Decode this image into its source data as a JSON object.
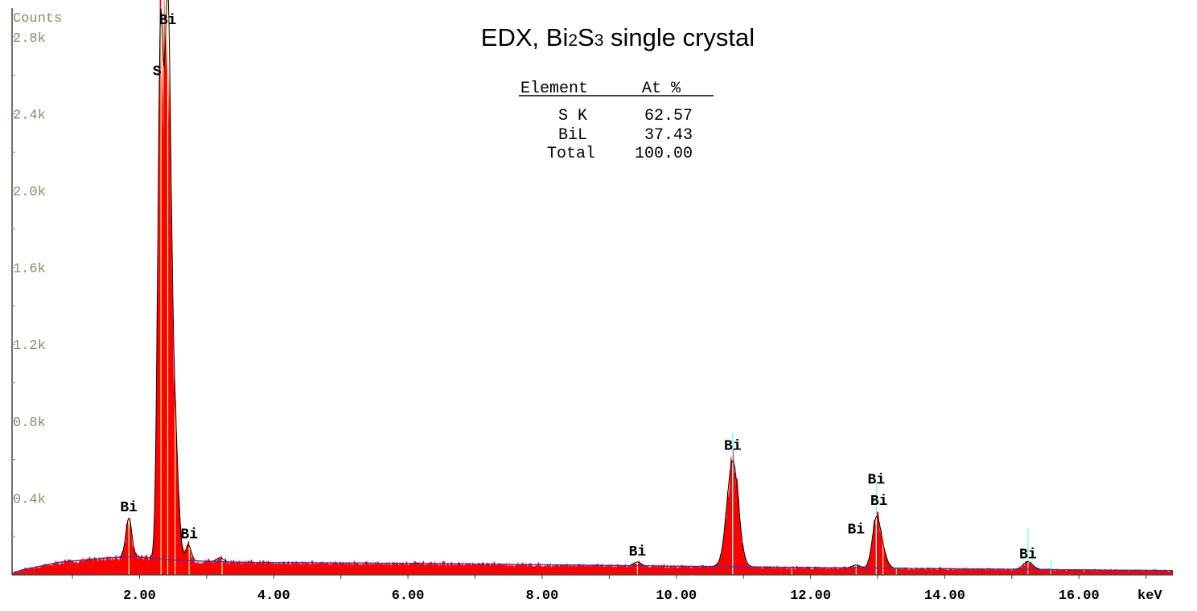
{
  "chart_data": {
    "type": "area",
    "title": {
      "prefix": "EDX, Bi",
      "sub1": "2",
      "mid": "S",
      "sub2": "3",
      "suffix": " single crystal"
    },
    "ylabel": "Counts",
    "xunit": "keV",
    "xlim": [
      0.1,
      17.4
    ],
    "ylim": [
      0,
      2950
    ],
    "x_ticks": [
      {
        "value": 2,
        "label": "2.00"
      },
      {
        "value": 4,
        "label": "4.00"
      },
      {
        "value": 6,
        "label": "6.00"
      },
      {
        "value": 8,
        "label": "8.00"
      },
      {
        "value": 10,
        "label": "10.00"
      },
      {
        "value": 12,
        "label": "12.00"
      },
      {
        "value": 14,
        "label": "14.00"
      },
      {
        "value": 16,
        "label": "16.00"
      }
    ],
    "y_ticks": [
      {
        "value": 400,
        "label": "0.4k"
      },
      {
        "value": 800,
        "label": "0.8k"
      },
      {
        "value": 1200,
        "label": "1.2k"
      },
      {
        "value": 1600,
        "label": "1.6k"
      },
      {
        "value": 2000,
        "label": "2.0k"
      },
      {
        "value": 2400,
        "label": "2.4k"
      },
      {
        "value": 2800,
        "label": "2.8k"
      }
    ],
    "peaks": [
      {
        "x": 1.84,
        "height": 200,
        "width": 0.045
      },
      {
        "x": 2.31,
        "height": 2560,
        "width": 0.04
      },
      {
        "x": 2.42,
        "height": 2860,
        "width": 0.05
      },
      {
        "x": 2.53,
        "height": 600,
        "width": 0.05
      },
      {
        "x": 2.73,
        "height": 80,
        "width": 0.04
      },
      {
        "x": 3.2,
        "height": 20,
        "width": 0.05
      },
      {
        "x": 9.42,
        "height": 20,
        "width": 0.05
      },
      {
        "x": 10.84,
        "height": 550,
        "width": 0.085
      },
      {
        "x": 12.68,
        "height": 15,
        "width": 0.06
      },
      {
        "x": 12.98,
        "height": 250,
        "width": 0.06
      },
      {
        "x": 13.08,
        "height": 70,
        "width": 0.06
      },
      {
        "x": 15.24,
        "height": 40,
        "width": 0.07
      }
    ],
    "background": [
      {
        "x": 0.1,
        "y": 10
      },
      {
        "x": 0.3,
        "y": 30
      },
      {
        "x": 0.8,
        "y": 65
      },
      {
        "x": 1.5,
        "y": 88
      },
      {
        "x": 1.9,
        "y": 95
      },
      {
        "x": 2.6,
        "y": 75
      },
      {
        "x": 3.5,
        "y": 65
      },
      {
        "x": 6.0,
        "y": 60
      },
      {
        "x": 10.0,
        "y": 45
      },
      {
        "x": 13.0,
        "y": 35
      },
      {
        "x": 17.4,
        "y": 22
      }
    ],
    "marker_lines": [
      1.84,
      2.32,
      2.42,
      2.53,
      2.74,
      3.23,
      9.42,
      10.84,
      11.72,
      12.68,
      12.98,
      13.08,
      13.28
    ],
    "cyan_lines": [
      {
        "x": 10.84,
        "height": 740
      },
      {
        "x": 12.98,
        "height": 480
      },
      {
        "x": 15.24,
        "height": 240
      },
      {
        "x": 15.58,
        "height": 80
      }
    ],
    "peak_labels": [
      {
        "x": 1.84,
        "y": 330,
        "text": "Bi"
      },
      {
        "x": 2.26,
        "y": 2600,
        "text": "S"
      },
      {
        "x": 2.42,
        "y": 2900,
        "text": "Bi"
      },
      {
        "x": 2.74,
        "y": 190,
        "text": "Bi"
      },
      {
        "x": 9.42,
        "y": 100,
        "text": "Bi"
      },
      {
        "x": 10.84,
        "y": 650,
        "text": "Bi"
      },
      {
        "x": 12.68,
        "y": 215,
        "text": "Bi"
      },
      {
        "x": 12.98,
        "y": 475,
        "text": "Bi"
      },
      {
        "x": 13.02,
        "y": 365,
        "text": "Bi"
      },
      {
        "x": 15.24,
        "y": 85,
        "text": "Bi"
      }
    ],
    "composition_table": {
      "headers": [
        "Element",
        "At %"
      ],
      "rows": [
        {
          "element": "S K",
          "value": "62.57"
        },
        {
          "element": "BiL",
          "value": "37.43"
        },
        {
          "element": "Total",
          "value": "100.00"
        }
      ]
    },
    "colors": {
      "fill": "#ff0000",
      "envelope": "#000000",
      "background_line": "#3333cc",
      "markers": "#ffff99",
      "cyan": "#66ffff",
      "axis": "#404040"
    }
  }
}
